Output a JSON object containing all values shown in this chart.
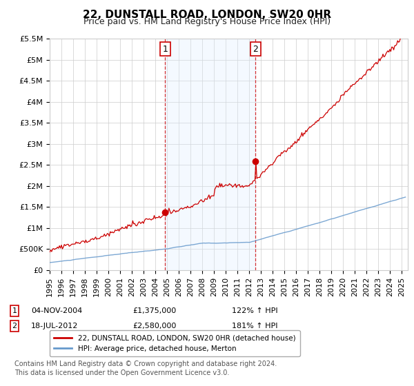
{
  "title": "22, DUNSTALL ROAD, LONDON, SW20 0HR",
  "subtitle": "Price paid vs. HM Land Registry's House Price Index (HPI)",
  "ylabel_ticks": [
    "£0",
    "£500K",
    "£1M",
    "£1.5M",
    "£2M",
    "£2.5M",
    "£3M",
    "£3.5M",
    "£4M",
    "£4.5M",
    "£5M",
    "£5.5M"
  ],
  "ylim": [
    0,
    5500000
  ],
  "ytick_values": [
    0,
    500000,
    1000000,
    1500000,
    2000000,
    2500000,
    3000000,
    3500000,
    4000000,
    4500000,
    5000000,
    5500000
  ],
  "xlim_start": 1995.0,
  "xlim_end": 2025.5,
  "marker1_x": 2004.84,
  "marker1_y": 1375000,
  "marker2_x": 2012.54,
  "marker2_y": 2580000,
  "marker1_label": "1",
  "marker2_label": "2",
  "marker1_date": "04-NOV-2004",
  "marker1_price": "£1,375,000",
  "marker1_hpi": "122% ↑ HPI",
  "marker2_date": "18-JUL-2012",
  "marker2_price": "£2,580,000",
  "marker2_hpi": "181% ↑ HPI",
  "legend_line1": "22, DUNSTALL ROAD, LONDON, SW20 0HR (detached house)",
  "legend_line2": "HPI: Average price, detached house, Merton",
  "footer": "Contains HM Land Registry data © Crown copyright and database right 2024.\nThis data is licensed under the Open Government Licence v3.0.",
  "line1_color": "#cc0000",
  "line2_color": "#6699cc",
  "shade_color": "#ddeeff",
  "background_color": "#ffffff",
  "grid_color": "#cccccc",
  "title_fontsize": 11,
  "subtitle_fontsize": 9,
  "axis_fontsize": 8,
  "footer_fontsize": 7
}
